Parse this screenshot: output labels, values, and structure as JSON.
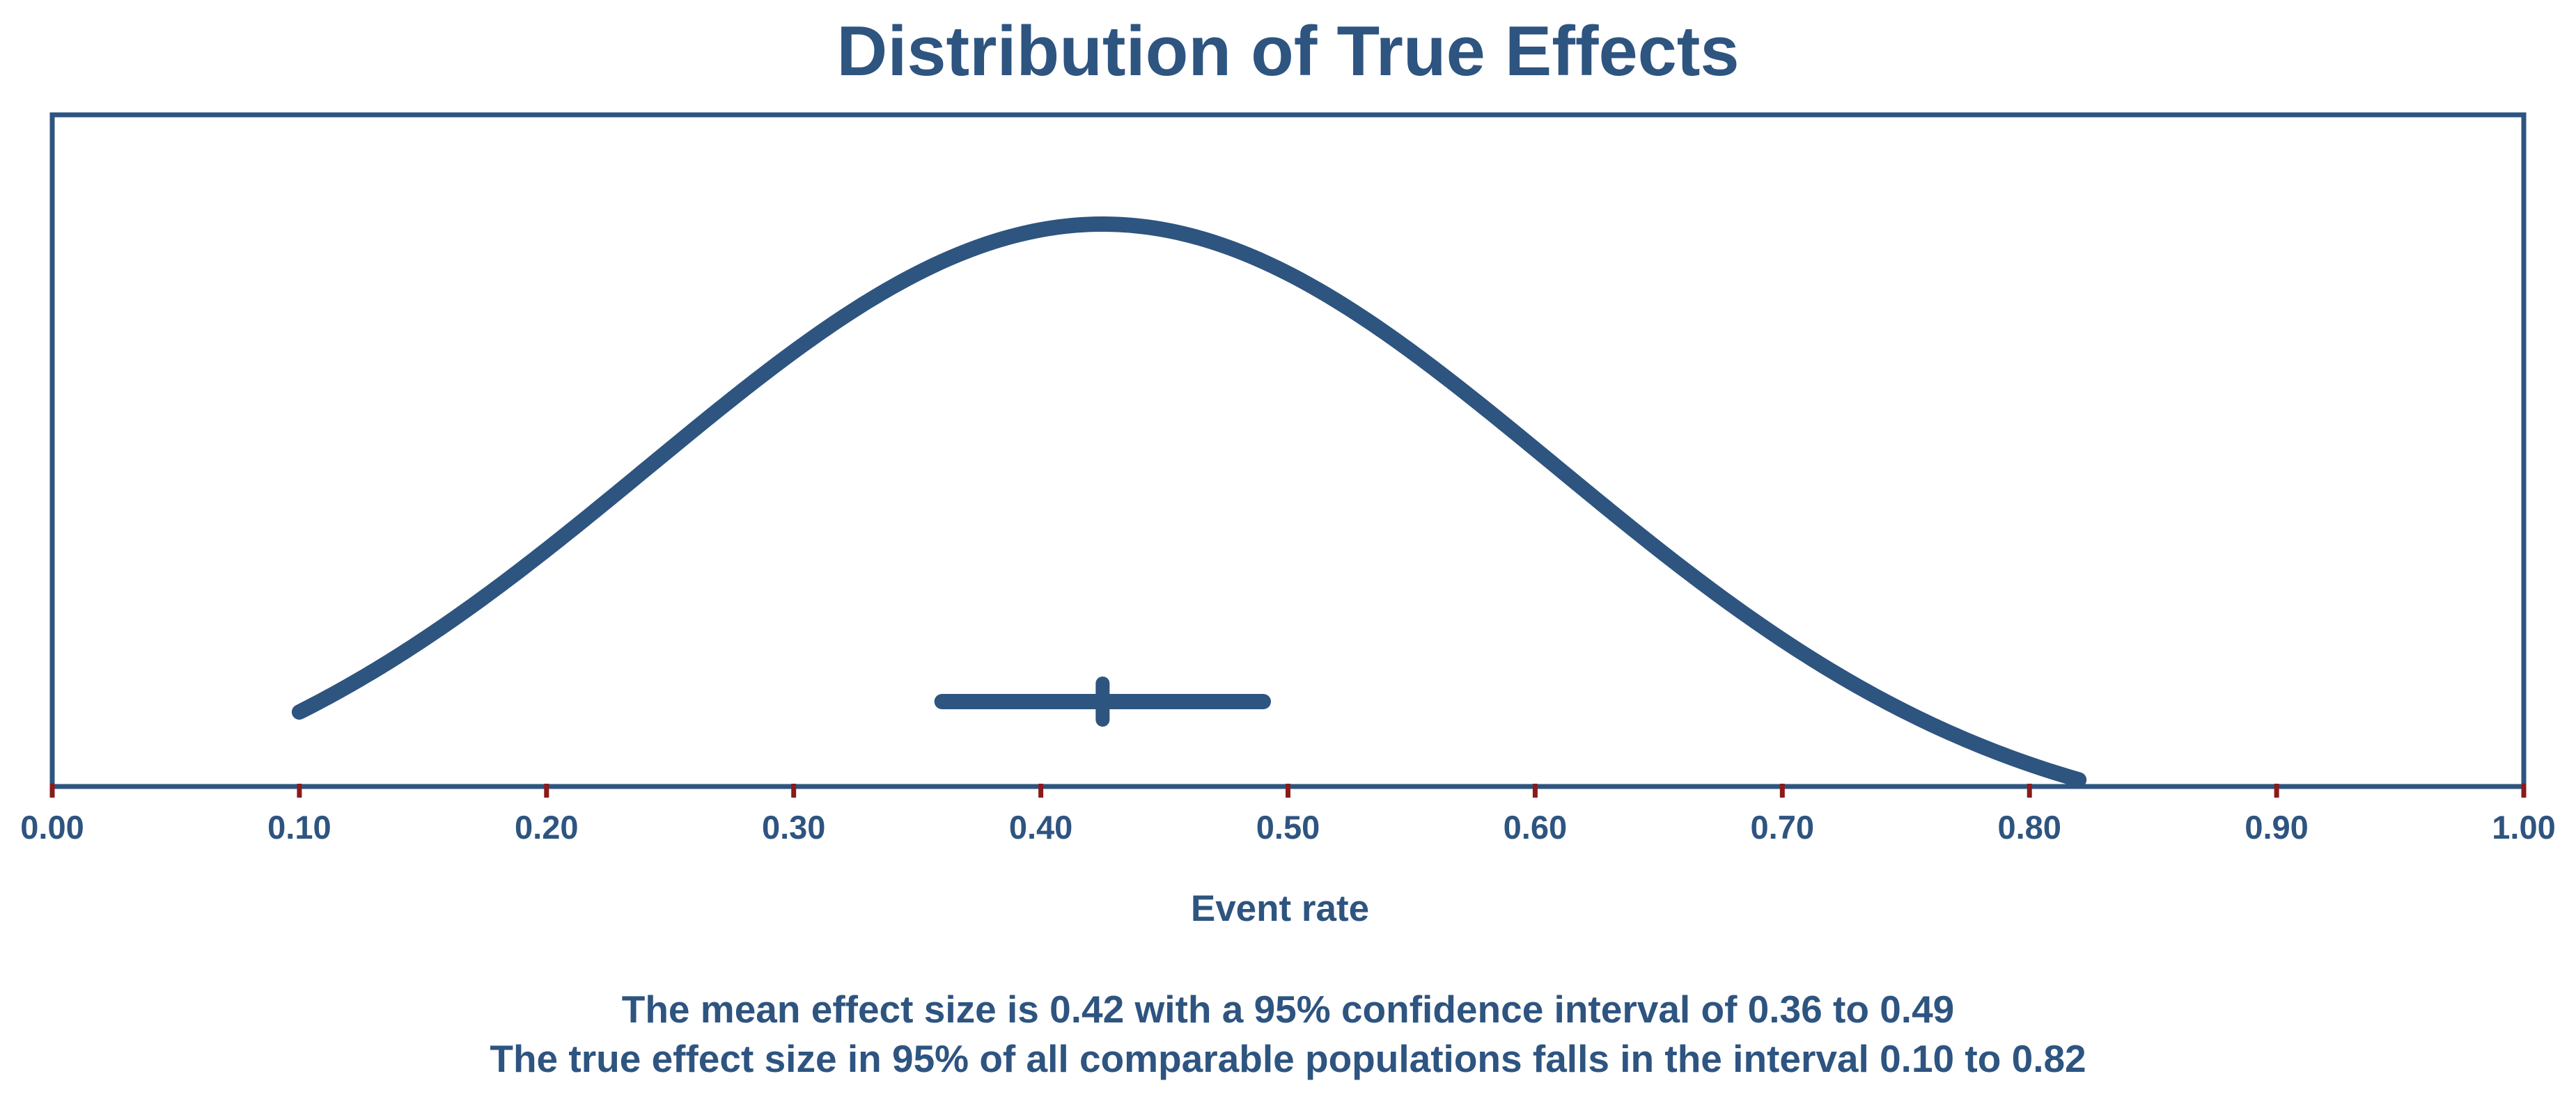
{
  "chart_data": {
    "type": "line",
    "title": "Distribution of True Effects",
    "xlabel": "Event rate",
    "ylabel": "",
    "xlim": [
      0.0,
      1.0
    ],
    "x_ticks": [
      0.0,
      0.1,
      0.2,
      0.3,
      0.4,
      0.5,
      0.6,
      0.7,
      0.8,
      0.9,
      1.0
    ],
    "x_tick_labels": [
      "0.00",
      "0.10",
      "0.20",
      "0.30",
      "0.40",
      "0.50",
      "0.60",
      "0.70",
      "0.80",
      "0.90",
      "1.00"
    ],
    "grid": false,
    "legend": "none",
    "series": [
      {
        "name": "Distribution of true effects",
        "kind": "density-curve",
        "mean": 0.425,
        "interval_95": [
          0.1,
          0.82
        ]
      },
      {
        "name": "Mean effect size with 95% confidence interval",
        "kind": "interval",
        "point": 0.425,
        "lower": 0.36,
        "upper": 0.49
      }
    ],
    "notes": [
      "The mean effect size is 0.42 with a 95% confidence interval of 0.36 to 0.49",
      "The true effect size in 95% of all comparable populations falls in the interval 0.10 to 0.82"
    ]
  },
  "colors": {
    "primary": "#2e5480",
    "tick_mark": "#8b1a1a",
    "background": "#ffffff"
  }
}
